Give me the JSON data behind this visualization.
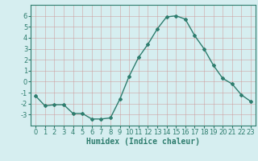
{
  "x": [
    0,
    1,
    2,
    3,
    4,
    5,
    6,
    7,
    8,
    9,
    10,
    11,
    12,
    13,
    14,
    15,
    16,
    17,
    18,
    19,
    20,
    21,
    22,
    23
  ],
  "y": [
    -1.3,
    -2.2,
    -2.1,
    -2.1,
    -2.9,
    -2.9,
    -3.4,
    -3.4,
    -3.3,
    -1.6,
    0.5,
    2.2,
    3.4,
    4.8,
    5.9,
    6.0,
    5.7,
    4.2,
    3.0,
    1.5,
    0.3,
    -0.2,
    -1.2,
    -1.8
  ],
  "line_color": "#2e7d6e",
  "marker": "D",
  "markersize": 2.0,
  "linewidth": 1.0,
  "xlabel": "Humidex (Indice chaleur)",
  "xlabel_fontsize": 7,
  "xlim": [
    -0.5,
    23.5
  ],
  "ylim": [
    -4,
    7
  ],
  "yticks": [
    -3,
    -2,
    -1,
    0,
    1,
    2,
    3,
    4,
    5,
    6
  ],
  "xticks": [
    0,
    1,
    2,
    3,
    4,
    5,
    6,
    7,
    8,
    9,
    10,
    11,
    12,
    13,
    14,
    15,
    16,
    17,
    18,
    19,
    20,
    21,
    22,
    23
  ],
  "grid_color": "#cc9999",
  "grid_alpha": 0.7,
  "bg_color": "#d6eef0",
  "tick_fontsize": 6,
  "fig_bg": "#d6eef0"
}
